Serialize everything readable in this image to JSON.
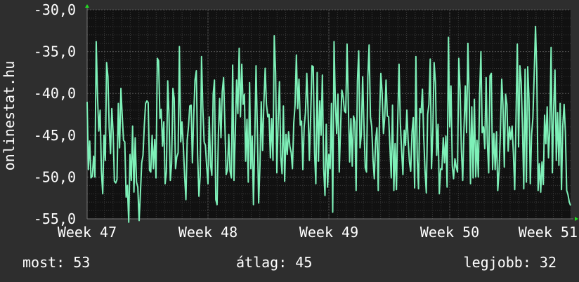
{
  "chart_data": {
    "type": "line",
    "ylabel": "onlinestat.hu",
    "ylim": [
      -55.0,
      -30.0
    ],
    "yticks": [
      "-30,0",
      "-35,0",
      "-40,0",
      "-45,0",
      "-50,0",
      "-55,0"
    ],
    "ytick_values": [
      -30,
      -35,
      -40,
      -45,
      -50,
      -55
    ],
    "xticks": [
      "Week 47",
      "Week 48",
      "Week 49",
      "Week 50",
      "Week 51"
    ],
    "grid": true,
    "colors": {
      "background": "#2e2e2e",
      "plot_background": "#111111",
      "grid": "#3a3a3a",
      "grid_major": "#555555",
      "line": "#7ef0b8",
      "axis_arrow": "#22dd22",
      "text": "#ffffff"
    },
    "series": [
      {
        "values": [
          -41.0,
          -49.1,
          -45.7,
          -50.1,
          -49.9,
          -47.5,
          -50.0,
          -33.8,
          -40.4,
          -44.5,
          -42.0,
          -49.3,
          -52.0,
          -45.0,
          -48.0,
          -36.3,
          -38.0,
          -44.1,
          -47.2,
          -41.8,
          -44.7,
          -50.5,
          -50.7,
          -50.3,
          -41.2,
          -46.5,
          -39.4,
          -42.6,
          -45.6,
          -45.8,
          -52.4,
          -51.0,
          -55.4,
          -47.3,
          -50.4,
          -43.9,
          -51.8,
          -45.3,
          -50.6,
          -51.2,
          -55.2,
          -52.0,
          -48.3,
          -47.4,
          -43.8,
          -41.2,
          -40.9,
          -41.1,
          -49.2,
          -49.4,
          -45.0,
          -49.0,
          -45.5,
          -50.1,
          -35.8,
          -36.1,
          -43.0,
          -41.9,
          -46.3,
          -43.4,
          -50.8,
          -49.4,
          -38.5,
          -42.6,
          -50.4,
          -48.4,
          -39.4,
          -40.6,
          -49.0,
          -47.6,
          -47.1,
          -34.4,
          -45.8,
          -43.4,
          -46.3,
          -49.8,
          -52.7,
          -45.6,
          -43.9,
          -41.5,
          -41.4,
          -48.3,
          -42.7,
          -38.4,
          -37.3,
          -47.3,
          -52.3,
          -49.8,
          -35.6,
          -41.6,
          -45.8,
          -46.2,
          -48.8,
          -50.8,
          -42.8,
          -48.6,
          -49.8,
          -40.1,
          -38.4,
          -52.7,
          -53.3,
          -44.9,
          -40.6,
          -45.3,
          -39.8,
          -38.1,
          -43.6,
          -49.7,
          -49.1,
          -44.9,
          -49.3,
          -50.1,
          -36.6,
          -50.4,
          -44.8,
          -38.4,
          -42.4,
          -34.6,
          -42.8,
          -36.5,
          -41.3,
          -40.1,
          -48.1,
          -43.1,
          -50.6,
          -38.7,
          -49.0,
          -45.1,
          -53.3,
          -45.4,
          -36.7,
          -44.5,
          -53.1,
          -48.5,
          -41.0,
          -46.8,
          -41.2,
          -37.0,
          -41.3,
          -42.8,
          -42.5,
          -47.7,
          -43.0,
          -48.0,
          -33.1,
          -37.5,
          -49.5,
          -43.3,
          -38.6,
          -47.6,
          -49.6,
          -41.5,
          -50.5,
          -44.9,
          -47.3,
          -44.6,
          -46.3,
          -47.1,
          -49.0,
          -43.5,
          -41.4,
          -35.4,
          -41.8,
          -38.3,
          -43.8,
          -43.3,
          -49.1,
          -44.0,
          -42.3,
          -37.6,
          -42.0,
          -48.0,
          -42.8,
          -36.7,
          -36.8,
          -47.2,
          -50.8,
          -37.5,
          -48.1,
          -40.9,
          -45.0,
          -37.8,
          -48.9,
          -52.2,
          -43.7,
          -51.2,
          -47.3,
          -49.0,
          -41.2,
          -54.2,
          -33.8,
          -40.9,
          -44.8,
          -40.1,
          -49.4,
          -44.3,
          -39.6,
          -40.4,
          -42.1,
          -42.3,
          -34.1,
          -41.4,
          -48.2,
          -43.0,
          -48.7,
          -42.7,
          -43.4,
          -51.6,
          -38.5,
          -34.9,
          -46.5,
          -44.9,
          -38.0,
          -43.6,
          -48.9,
          -49.4,
          -38.0,
          -34.2,
          -42.8,
          -44.0,
          -48.0,
          -50.2,
          -45.6,
          -44.1,
          -51.6,
          -42.8,
          -37.6,
          -39.9,
          -44.8,
          -42.9,
          -38.4,
          -42.7,
          -42.8,
          -46.3,
          -50.1,
          -41.4,
          -51.6,
          -46.0,
          -51.5,
          -43.4,
          -36.5,
          -43.5,
          -46.9,
          -49.7,
          -44.4,
          -46.2,
          -42.0,
          -45.6,
          -48.2,
          -49.3,
          -44.6,
          -42.9,
          -51.3,
          -35.6,
          -47.7,
          -51.4,
          -41.8,
          -42.3,
          -39.5,
          -45.2,
          -49.3,
          -51.9,
          -42.5,
          -41.3,
          -35.9,
          -49.0,
          -44.5,
          -36.3,
          -38.7,
          -47.4,
          -43.7,
          -52.0,
          -49.0,
          -49.1,
          -45.3,
          -48.3,
          -45.1,
          -51.2,
          -33.3,
          -44.0,
          -39.1,
          -48.7,
          -50.2,
          -47.8,
          -48.8,
          -49.4,
          -35.8,
          -39.6,
          -46.7,
          -50.4,
          -44.3,
          -39.1,
          -44.7,
          -34.0,
          -40.2,
          -50.8,
          -41.6,
          -50.1,
          -40.7,
          -50.0,
          -45.6,
          -50.0,
          -40.3,
          -35.0,
          -44.7,
          -44.0,
          -46.6,
          -38.1,
          -45.9,
          -49.5,
          -37.9,
          -37.6,
          -49.1,
          -44.8,
          -49.1,
          -44.6,
          -51.6,
          -49.2,
          -44.8,
          -38.3,
          -41.4,
          -48.8,
          -40.1,
          -41.3,
          -46.9,
          -44.0,
          -45.5,
          -43.9,
          -47.1,
          -51.5,
          -43.3,
          -34.1,
          -46.4,
          -36.7,
          -38.6,
          -44.2,
          -51.4,
          -37.1,
          -50.6,
          -36.8,
          -40.7,
          -50.8,
          -45.0,
          -42.9,
          -37.8,
          -32.0,
          -37.3,
          -51.6,
          -48.4,
          -51.8,
          -48.2,
          -50.9,
          -42.6,
          -46.0,
          -41.6,
          -47.7,
          -44.2,
          -34.5,
          -49.5,
          -41.7,
          -37.2,
          -48.0,
          -42.3,
          -48.6,
          -41.2,
          -51.5,
          -43.9,
          -41.3,
          -44.6,
          -51.6,
          -52.1,
          -53.0,
          -53.4
        ]
      }
    ]
  },
  "stats": {
    "now": "most: 53",
    "avg": "átlag: 45",
    "best": "legjobb: 32"
  }
}
